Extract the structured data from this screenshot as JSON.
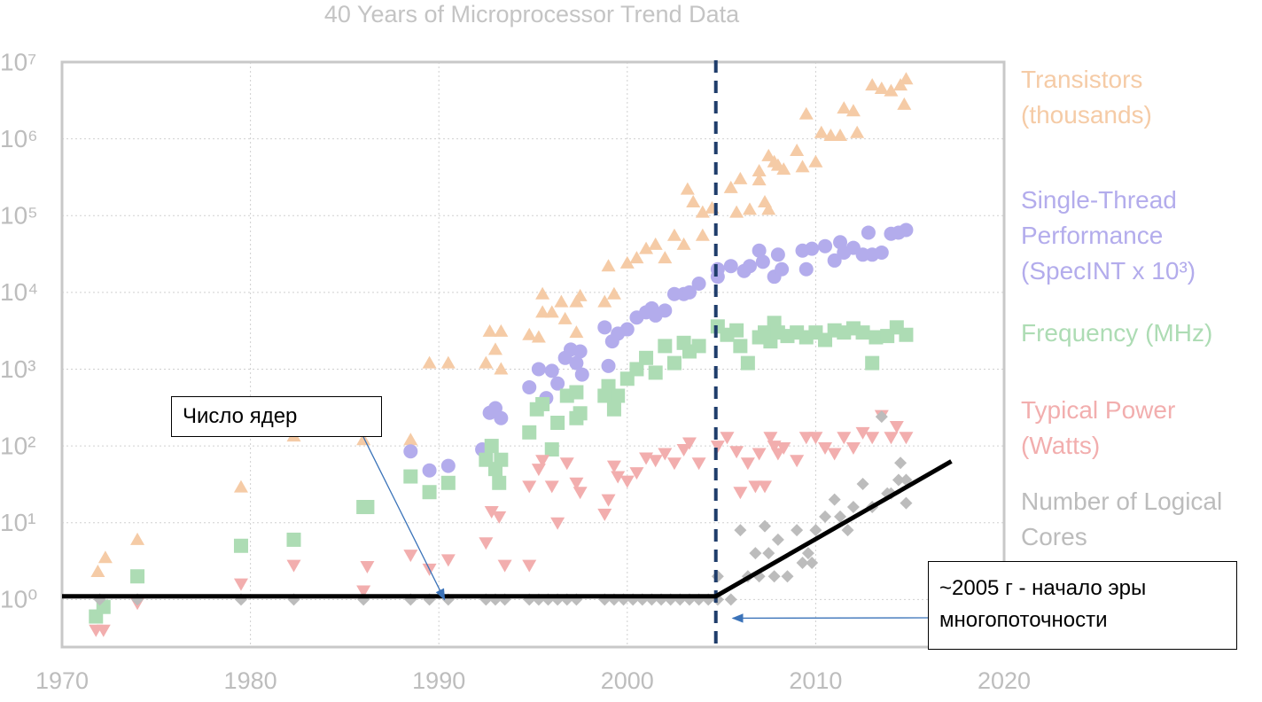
{
  "chart_data": {
    "type": "scatter",
    "title": "40 Years of Microprocessor Trend Data",
    "log_y": true,
    "grid": true,
    "xlim": [
      1970,
      2020
    ],
    "xticks": [
      1970,
      1980,
      1990,
      2000,
      2010,
      2020
    ],
    "ylim": [
      0.24,
      10000000
    ],
    "yticks": [
      {
        "value": 1,
        "label": "10⁰"
      },
      {
        "value": 10,
        "label": "10¹"
      },
      {
        "value": 100,
        "label": "10²"
      },
      {
        "value": 1000,
        "label": "10³"
      },
      {
        "value": 10000,
        "label": "10⁴"
      },
      {
        "value": 100000,
        "label": "10⁵"
      },
      {
        "value": 1000000,
        "label": "10⁶"
      },
      {
        "value": 10000000,
        "label": "10⁷"
      }
    ],
    "series": [
      {
        "name": "Transistors (thousands)",
        "color": "#f5cba6",
        "marker": "triangle-up",
        "x": [
          1971.9,
          1972.3,
          1974,
          1979.5,
          1982.3,
          1986,
          1988.5,
          1989.5,
          1990.5,
          1992.5,
          1992.7,
          1993.3,
          1993,
          1993.3,
          1994.8,
          1995.3,
          1995.5,
          1995.5,
          1996,
          1996.5,
          1996.7,
          1997.3,
          1997.5,
          1997.3,
          1998.8,
          1999,
          1999.3,
          2000,
          2000.5,
          2001,
          2001.5,
          2002,
          2002.5,
          2003,
          2003.2,
          2003.5,
          2004,
          2004,
          2004.5,
          2005.5,
          2005.8,
          2006,
          2006.5,
          2007,
          2007,
          2007.3,
          2007.5,
          2007.8,
          2007.5,
          2008,
          2008.3,
          2009,
          2009.3,
          2009.5,
          2010,
          2010.3,
          2010.8,
          2011.5,
          2011.3,
          2012,
          2012.2,
          2013,
          2013.5,
          2014,
          2014.5,
          2014.7,
          2014.8
        ],
        "values": [
          2.3,
          3.5,
          6,
          29,
          134,
          120,
          120,
          1200,
          1200,
          1200,
          3100,
          3100,
          1800,
          1000,
          2800,
          2600,
          5500,
          9500,
          5500,
          7500,
          4500,
          7500,
          9000,
          3000,
          7500,
          22000,
          9500,
          24000,
          28000,
          37000,
          42000,
          28000,
          55000,
          42000,
          220000,
          150000,
          55000,
          110000,
          125000,
          230000,
          110000,
          300000,
          120000,
          290000,
          380000,
          150000,
          600000,
          500000,
          120000,
          450000,
          400000,
          700000,
          430000,
          2100000,
          500000,
          1200000,
          1100000,
          2500000,
          1100000,
          2300000,
          1200000,
          5000000,
          4500000,
          4200000,
          5000000,
          2800000,
          6000000
        ]
      },
      {
        "name": "Single-Thread Performance (SpecINT x 10³)",
        "color": "#b3acec",
        "marker": "circle",
        "x": [
          1988.5,
          1989.5,
          1990.5,
          1992.3,
          1992.7,
          1993,
          1993.3,
          1994.8,
          1995.3,
          1995.7,
          1996,
          1996.3,
          1996.7,
          1997,
          1997.3,
          1997.5,
          1997.6,
          1998.8,
          1999,
          1999.2,
          1999.5,
          2000,
          2000.5,
          2001,
          2001.3,
          2001.5,
          2002,
          2002.5,
          2003,
          2003.3,
          2003.8,
          2004.8,
          2004.8,
          2005.5,
          2006.2,
          2006.5,
          2007,
          2007.2,
          2007.8,
          2008,
          2008.2,
          2009.3,
          2009.5,
          2009.8,
          2010.5,
          2011,
          2011.3,
          2011.5,
          2012,
          2012.5,
          2012.8,
          2013,
          2013.5,
          2014,
          2014.4,
          2014.8
        ],
        "values": [
          85,
          48,
          55,
          90,
          270,
          310,
          230,
          580,
          1000,
          420,
          950,
          650,
          1400,
          1800,
          1200,
          1700,
          850,
          3500,
          1100,
          2300,
          2900,
          3300,
          4700,
          5500,
          6200,
          5000,
          5800,
          9500,
          9500,
          10000,
          13000,
          16000,
          20000,
          22000,
          19000,
          22000,
          35000,
          25000,
          16000,
          31000,
          20000,
          35000,
          20000,
          37000,
          40000,
          26000,
          45000,
          33000,
          38000,
          31000,
          60000,
          31000,
          33000,
          58000,
          60000,
          65000
        ]
      },
      {
        "name": "Frequency (MHz)",
        "color": "#addcb4",
        "marker": "square",
        "x": [
          1971.8,
          1972.2,
          1974,
          1979.5,
          1982.3,
          1986,
          1986.2,
          1988.5,
          1989.5,
          1990.5,
          1992.5,
          1992.8,
          1993,
          1993.3,
          1993.2,
          1994.8,
          1995.2,
          1995.5,
          1996,
          1996.3,
          1996.8,
          1997.3,
          1997.5,
          1997.3,
          1998.8,
          1999,
          1999.3,
          1999.5,
          2000,
          2000.5,
          2001,
          2001.5,
          2002,
          2002.5,
          2003,
          2003.3,
          2003.8,
          2004.8,
          2005.3,
          2005.8,
          2006,
          2006.4,
          2007,
          2007.3,
          2007.6,
          2007.8,
          2008,
          2008.5,
          2009,
          2009.5,
          2010,
          2010.5,
          2011,
          2011.5,
          2012,
          2012.5,
          2013,
          2013.2,
          2013.8,
          2014.3,
          2014.8
        ],
        "values": [
          0.6,
          0.8,
          2,
          5,
          6,
          16,
          16,
          40,
          25,
          33,
          66,
          100,
          50,
          66,
          33,
          150,
          300,
          350,
          90,
          200,
          450,
          230,
          266,
          500,
          450,
          600,
          300,
          450,
          750,
          1000,
          1400,
          900,
          2000,
          1200,
          2200,
          1700,
          2000,
          3600,
          2800,
          3200,
          2000,
          1200,
          2600,
          3000,
          2300,
          4000,
          3000,
          2700,
          3000,
          2600,
          3000,
          2400,
          3200,
          3000,
          3400,
          3000,
          1200,
          2600,
          2700,
          3500,
          2800
        ]
      },
      {
        "name": "Typical Power (Watts)",
        "color": "#f2aeae",
        "marker": "triangle-down",
        "x": [
          1971.8,
          1972.2,
          1974,
          1979.5,
          1982.3,
          1986,
          1986.2,
          1988.5,
          1989.5,
          1990.5,
          1992.5,
          1992.8,
          1993.2,
          1993.5,
          1994.8,
          1994.8,
          1995.3,
          1995.5,
          1996,
          1996.3,
          1996.8,
          1997.3,
          1997.5,
          1998.8,
          1999,
          1999.3,
          1999.5,
          2000,
          2000.5,
          2001,
          2001.5,
          2002,
          2002.5,
          2003,
          2003.3,
          2003.8,
          2004.8,
          2005.3,
          2005.8,
          2006,
          2006.4,
          2006.8,
          2007,
          2007.3,
          2007.6,
          2007.8,
          2008,
          2008.3,
          2009,
          2009.5,
          2010,
          2010.5,
          2011,
          2011.5,
          2012,
          2012.5,
          2013,
          2013.5,
          2014,
          2014.3,
          2014.8
        ],
        "values": [
          0.4,
          0.4,
          0.9,
          1.6,
          2.8,
          1.3,
          2.7,
          3.8,
          2.5,
          3.3,
          5.5,
          14,
          12,
          2.8,
          2.8,
          30,
          50,
          65,
          30,
          10,
          60,
          33,
          25,
          13,
          20,
          55,
          40,
          35,
          45,
          70,
          65,
          80,
          60,
          90,
          110,
          60,
          100,
          130,
          85,
          25,
          60,
          30,
          80,
          30,
          130,
          100,
          80,
          95,
          65,
          130,
          130,
          95,
          80,
          130,
          95,
          150,
          130,
          250,
          130,
          180,
          130
        ]
      },
      {
        "name": "Number of Logical Cores",
        "color": "#bcbcbc",
        "marker": "diamond",
        "x": [
          1972,
          1974,
          1979.5,
          1982.3,
          1986,
          1988.5,
          1989.5,
          1990.5,
          1992.5,
          1993,
          1993.5,
          1994.8,
          1995.3,
          1995.8,
          1996.3,
          1996.8,
          1997.3,
          1998.8,
          1999.3,
          1999.8,
          2000.3,
          2000.8,
          2001.3,
          2001.8,
          2002.3,
          2002.8,
          2003.3,
          2003.8,
          2004.3,
          2004.8,
          2004.8,
          2005.5,
          2006,
          2006.4,
          2006.8,
          2007,
          2007.3,
          2007.5,
          2007.8,
          2008,
          2008.5,
          2009,
          2009.3,
          2009.6,
          2009.8,
          2010,
          2010.5,
          2011,
          2011.3,
          2011.7,
          2012,
          2012.5,
          2013,
          2013.5,
          2013.8,
          2014,
          2014.4,
          2014.5,
          2014.8,
          2014.8
        ],
        "values": [
          1,
          1,
          1,
          1,
          1,
          1,
          1,
          1,
          1,
          1,
          1,
          1,
          1,
          1,
          1,
          1,
          1,
          1,
          1,
          1,
          1,
          1,
          1,
          1,
          1,
          1,
          1,
          1,
          1,
          1,
          2,
          1,
          8,
          2,
          4,
          2,
          9,
          4,
          2,
          6,
          2,
          8,
          3,
          4,
          3,
          8,
          12,
          20,
          12,
          8,
          16,
          32,
          16,
          240,
          24,
          24,
          36,
          60,
          18,
          36
        ]
      }
    ],
    "trend_line": {
      "x": [
        1970,
        2004.7,
        2017.2
      ],
      "y": [
        1.1,
        1.1,
        63
      ]
    },
    "vline_x": 2004.7,
    "annotations": [
      {
        "text": "Число ядер",
        "x": 1990.3,
        "y": 1.0
      },
      {
        "text": "~2005 г - начало эры многопоточности",
        "x": 2005.6,
        "y": 0.57
      }
    ]
  }
}
